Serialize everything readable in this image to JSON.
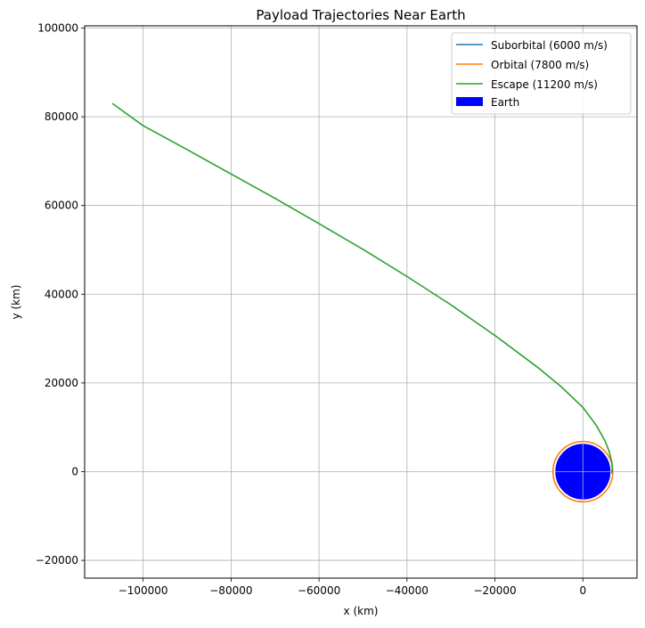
{
  "chart_data": {
    "type": "line",
    "title": "Payload Trajectories Near Earth",
    "xlabel": "x (km)",
    "ylabel": "y (km)",
    "xlim": [
      -113300,
      12300
    ],
    "ylim": [
      -24000,
      100500
    ],
    "xticks": [
      -100000,
      -80000,
      -60000,
      -40000,
      -20000,
      0
    ],
    "yticks": [
      -20000,
      0,
      20000,
      40000,
      60000,
      80000,
      100000
    ],
    "xtick_labels": [
      "−100000",
      "−80000",
      "−60000",
      "−40000",
      "−20000",
      "0"
    ],
    "ytick_labels": [
      "−20000",
      "0",
      "20000",
      "40000",
      "60000",
      "80000",
      "100000"
    ],
    "grid": true,
    "legend_position": "top-right",
    "earth": {
      "name": "Earth",
      "radius_km": 6371,
      "color": "#0000ff",
      "edge_color": "#ffffff"
    },
    "series": [
      {
        "name": "Suborbital (6000 m/s)",
        "color": "#1f77b4",
        "x": [
          6550,
          6600,
          6650,
          6600,
          6550
        ],
        "y": [
          0,
          300,
          0,
          -300,
          0
        ]
      },
      {
        "name": "Orbital (7800 m/s)",
        "color": "#ff7f0e",
        "circle_radius_km": 6800
      },
      {
        "name": "Escape (11200 m/s)",
        "color": "#2ca02c",
        "x": [
          6700,
          6600,
          6000,
          5000,
          3000,
          0,
          -5000,
          -10000,
          -20000,
          -30000,
          -40000,
          -50000,
          -60000,
          -70000,
          -80000,
          -90000,
          -100000,
          -107000
        ],
        "y": [
          0,
          2000,
          4500,
          7000,
          10500,
          14500,
          19200,
          23300,
          30700,
          37600,
          44000,
          50100,
          55900,
          61600,
          67100,
          72600,
          78000,
          83000
        ]
      }
    ]
  }
}
